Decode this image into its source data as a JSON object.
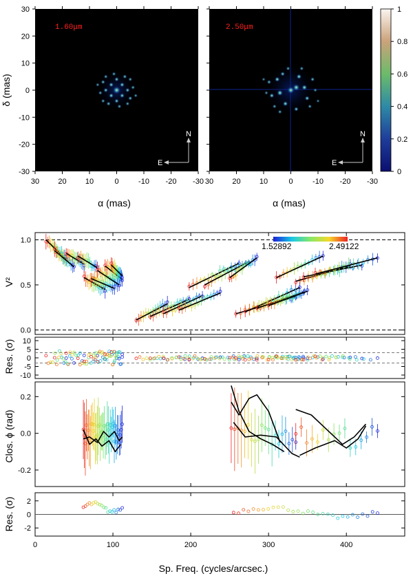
{
  "chart_data": [
    {
      "type": "heatmap",
      "title": "1.60μm",
      "xlabel": "α (mas)",
      "ylabel": "δ (mas)",
      "xlim": [
        30,
        -30
      ],
      "ylim": [
        -30,
        30
      ],
      "xticks": [
        30,
        20,
        10,
        0,
        -10,
        -20,
        -30
      ],
      "yticks": [
        30,
        20,
        10,
        0,
        -10,
        -20,
        -30
      ],
      "compass": [
        "N",
        "E"
      ],
      "spots": [
        [
          0,
          0,
          1.0
        ],
        [
          2,
          2,
          0.45
        ],
        [
          -2,
          2,
          0.45
        ],
        [
          2,
          -2,
          0.45
        ],
        [
          -2,
          -2,
          0.45
        ],
        [
          4,
          0,
          0.4
        ],
        [
          -4,
          0,
          0.4
        ],
        [
          0,
          4,
          0.4
        ],
        [
          0,
          -4,
          0.4
        ],
        [
          5,
          3,
          0.35
        ],
        [
          -5,
          -3,
          0.35
        ],
        [
          3,
          -5,
          0.35
        ],
        [
          -3,
          5,
          0.35
        ],
        [
          6,
          -1,
          0.3
        ],
        [
          -6,
          1,
          0.3
        ],
        [
          1,
          6,
          0.3
        ],
        [
          -1,
          -6,
          0.3
        ],
        [
          4,
          5,
          0.3
        ],
        [
          -4,
          -5,
          0.3
        ],
        [
          5,
          -4,
          0.3
        ],
        [
          -5,
          4,
          0.3
        ],
        [
          7,
          2,
          0.25
        ],
        [
          -7,
          -2,
          0.25
        ]
      ]
    },
    {
      "type": "heatmap",
      "title": "2.50μm",
      "xlabel": "α (mas)",
      "xlim": [
        30,
        -30
      ],
      "ylim": [
        -30,
        30
      ],
      "xticks": [
        30,
        20,
        10,
        0,
        -10,
        -20,
        -30
      ],
      "compass": [
        "N",
        "E"
      ],
      "spots": [
        [
          0,
          0,
          0.9
        ],
        [
          -2,
          1,
          0.85
        ],
        [
          4,
          -1,
          0.7
        ],
        [
          -5,
          1,
          0.6
        ],
        [
          5,
          4,
          0.5
        ],
        [
          -3,
          5,
          0.5
        ],
        [
          2,
          -5,
          0.5
        ],
        [
          -6,
          -3,
          0.45
        ],
        [
          7,
          -2,
          0.45
        ],
        [
          3,
          6,
          0.4
        ],
        [
          -2,
          -7,
          0.4
        ],
        [
          -8,
          4,
          0.35
        ],
        [
          8,
          3,
          0.35
        ],
        [
          1,
          8,
          0.3
        ],
        [
          -7,
          -6,
          0.3
        ],
        [
          6,
          -6,
          0.3
        ],
        [
          -4,
          8,
          0.3
        ],
        [
          4,
          -8,
          0.3
        ],
        [
          9,
          -1,
          0.25
        ],
        [
          -9,
          0,
          0.25
        ],
        [
          10,
          4,
          0.2
        ],
        [
          -10,
          -4,
          0.2
        ]
      ],
      "colorbar": {
        "ticks": [
          1,
          0.8,
          0.6,
          0.4,
          0.2,
          0
        ],
        "range": [
          0,
          1
        ]
      }
    },
    {
      "type": "scatter",
      "ylabel": "V²",
      "xlim": [
        0,
        475
      ],
      "ylim": [
        -0.05,
        1.08
      ],
      "yticks": [
        "0.0",
        "0.5",
        "1.0"
      ],
      "hlines": [
        1.0,
        0.0
      ],
      "wavelength_bar": {
        "min_label": "1.52892",
        "max_label": "2.49122"
      },
      "groups": [
        {
          "x": [
            14,
            40
          ],
          "y": [
            1.0,
            0.78
          ]
        },
        {
          "x": [
            25,
            50
          ],
          "y": [
            0.88,
            0.7
          ]
        },
        {
          "x": [
            40,
            63
          ],
          "y": [
            0.85,
            0.73
          ]
        },
        {
          "x": [
            55,
            80
          ],
          "y": [
            0.82,
            0.69
          ]
        },
        {
          "x": [
            63,
            90
          ],
          "y": [
            0.58,
            0.45
          ]
        },
        {
          "x": [
            72,
            102
          ],
          "y": [
            0.57,
            0.46
          ]
        },
        {
          "x": [
            80,
            108
          ],
          "y": [
            0.66,
            0.5
          ]
        },
        {
          "x": [
            90,
            112
          ],
          "y": [
            0.71,
            0.56
          ]
        },
        {
          "x": [
            98,
            112
          ],
          "y": [
            0.72,
            0.6
          ]
        },
        {
          "x": [
            130,
            170
          ],
          "y": [
            0.11,
            0.29
          ]
        },
        {
          "x": [
            148,
            198
          ],
          "y": [
            0.15,
            0.34
          ]
        },
        {
          "x": [
            165,
            215
          ],
          "y": [
            0.18,
            0.38
          ]
        },
        {
          "x": [
            185,
            238
          ],
          "y": [
            0.22,
            0.41
          ]
        },
        {
          "x": [
            198,
            262
          ],
          "y": [
            0.47,
            0.74
          ]
        },
        {
          "x": [
            218,
            275
          ],
          "y": [
            0.5,
            0.76
          ]
        },
        {
          "x": [
            250,
            285
          ],
          "y": [
            0.58,
            0.8
          ]
        },
        {
          "x": [
            258,
            335
          ],
          "y": [
            0.18,
            0.37
          ]
        },
        {
          "x": [
            270,
            340
          ],
          "y": [
            0.2,
            0.47
          ]
        },
        {
          "x": [
            285,
            345
          ],
          "y": [
            0.24,
            0.42
          ]
        },
        {
          "x": [
            300,
            350
          ],
          "y": [
            0.27,
            0.43
          ]
        },
        {
          "x": [
            310,
            370
          ],
          "y": [
            0.58,
            0.82
          ]
        },
        {
          "x": [
            335,
            405
          ],
          "y": [
            0.54,
            0.71
          ]
        },
        {
          "x": [
            345,
            420
          ],
          "y": [
            0.59,
            0.72
          ]
        },
        {
          "x": [
            360,
            440
          ],
          "y": [
            0.62,
            0.8
          ]
        }
      ]
    },
    {
      "type": "scatter",
      "ylabel": "Res. (σ)",
      "xlim": [
        0,
        475
      ],
      "ylim": [
        -12,
        12
      ],
      "yticks": [
        "10",
        "5",
        "0",
        "-5",
        "-10"
      ],
      "hlines": [
        3,
        -3
      ]
    },
    {
      "type": "scatter",
      "ylabel": "Clos. ϕ (rad)",
      "xlim": [
        0,
        475
      ],
      "ylim": [
        -0.29,
        0.28
      ],
      "yticks": [
        "0.2",
        "0.0",
        "-0.2"
      ],
      "model_curves": [
        {
          "x": [
            62,
            70,
            80,
            88,
            95,
            102,
            108,
            112
          ],
          "y": [
            -0.03,
            -0.02,
            -0.05,
            0.01,
            -0.02,
            0.01,
            -0.04,
            -0.02
          ]
        },
        {
          "x": [
            62,
            70,
            78,
            86,
            95,
            103,
            110
          ],
          "y": [
            0.02,
            -0.06,
            -0.03,
            -0.07,
            -0.04,
            -0.1,
            -0.06
          ]
        },
        {
          "x": [
            252,
            262,
            275,
            290,
            305,
            320
          ],
          "y": [
            0.26,
            0.12,
            0.01,
            -0.03,
            -0.06,
            -0.1
          ]
        },
        {
          "x": [
            252,
            262,
            275,
            285,
            300,
            315
          ],
          "y": [
            0.17,
            0.1,
            0.19,
            0.21,
            0.12,
            -0.05
          ]
        },
        {
          "x": [
            255,
            270,
            290,
            310,
            330,
            340
          ],
          "y": [
            0.06,
            -0.02,
            -0.01,
            -0.02,
            -0.11,
            -0.13
          ]
        },
        {
          "x": [
            335,
            355,
            375,
            395,
            410,
            425
          ],
          "y": [
            0.13,
            0.1,
            0.02,
            -0.06,
            -0.02,
            0.05
          ]
        },
        {
          "x": [
            340,
            360,
            385,
            400,
            415,
            425
          ],
          "y": [
            -0.12,
            -0.08,
            -0.04,
            -0.08,
            -0.03,
            0.04
          ]
        }
      ]
    },
    {
      "type": "scatter",
      "ylabel": "Res. (σ)",
      "xlabel": "Sp. Freq. (cycles/arcsec.)",
      "xlim": [
        0,
        475
      ],
      "ylim": [
        -3.2,
        3.2
      ],
      "yticks": [
        "2",
        "0",
        "-2"
      ],
      "xticks": [
        "0",
        "100",
        "200",
        "300",
        "400"
      ],
      "hlines": [
        0
      ]
    }
  ]
}
